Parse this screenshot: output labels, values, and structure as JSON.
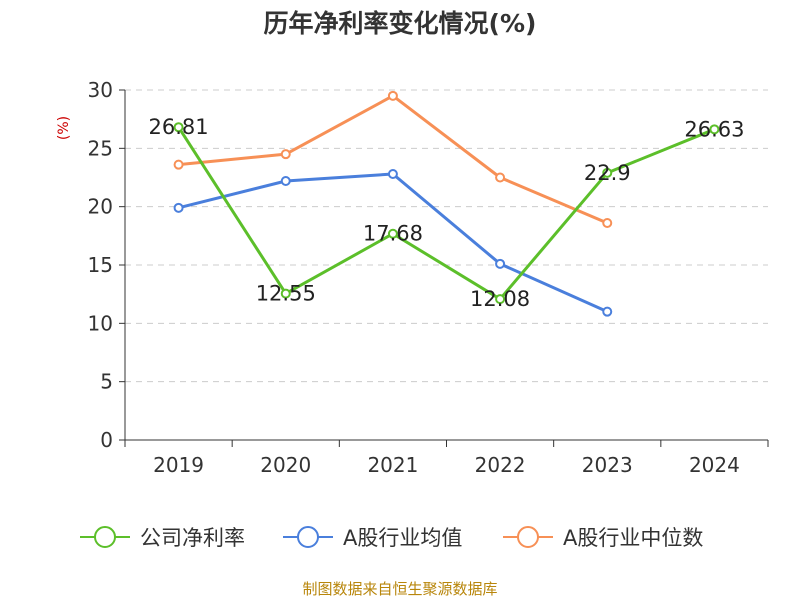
{
  "title": "历年净利率变化情况(%)",
  "source": "制图数据来自恒生聚源数据库",
  "colors": {
    "source_text": "#b8860b",
    "unit_text": "#cc0000",
    "axis": "#333333",
    "grid": "#cccccc"
  },
  "chart_data": {
    "type": "line",
    "title": "历年净利率变化情况(%)",
    "ylabel": "(%)",
    "xlabel": "",
    "categories": [
      "2019",
      "2020",
      "2021",
      "2022",
      "2023",
      "2024"
    ],
    "ylim": [
      0,
      30
    ],
    "yticks": [
      0,
      5,
      10,
      15,
      20,
      25,
      30
    ],
    "grid": true,
    "legend_position": "bottom",
    "series": [
      {
        "name": "公司净利率",
        "color": "#5cbf2a",
        "values": [
          26.81,
          12.55,
          17.68,
          12.08,
          22.9,
          26.63
        ],
        "labels": [
          "26.81",
          "12.55",
          "17.68",
          "12.08",
          "22.9",
          "26.63"
        ]
      },
      {
        "name": "A股行业均值",
        "color": "#4a7fdc",
        "values": [
          19.9,
          22.2,
          22.8,
          15.1,
          11.0,
          null
        ]
      },
      {
        "name": "A股行业中位数",
        "color": "#f79056",
        "values": [
          23.6,
          24.5,
          29.5,
          22.5,
          18.6,
          null
        ]
      }
    ]
  }
}
